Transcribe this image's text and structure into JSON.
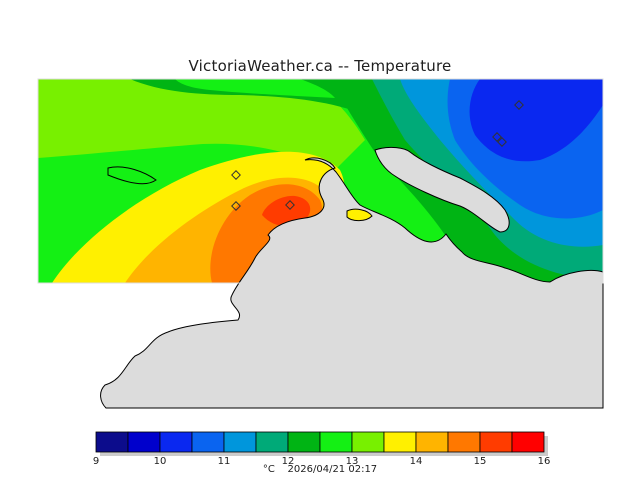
{
  "title": "VictoriaWeather.ca -- Temperature",
  "legend": {
    "unit": "°C",
    "timestamp": "2026/04/21 02:17",
    "tick_labels": [
      "9",
      "10",
      "11",
      "12",
      "13",
      "14",
      "15",
      "16"
    ],
    "colors": [
      "#0c0c8c",
      "#0000cc",
      "#0a28f0",
      "#0a64f0",
      "#0096dc",
      "#00aa78",
      "#00b414",
      "#14f014",
      "#78f000",
      "#fff000",
      "#ffb400",
      "#ff7800",
      "#ff3c00",
      "#ff0000"
    ],
    "min": 9,
    "max": 16,
    "step": 0.5
  },
  "map": {
    "land_color": "#dcdcdc",
    "station_markers": 6
  }
}
